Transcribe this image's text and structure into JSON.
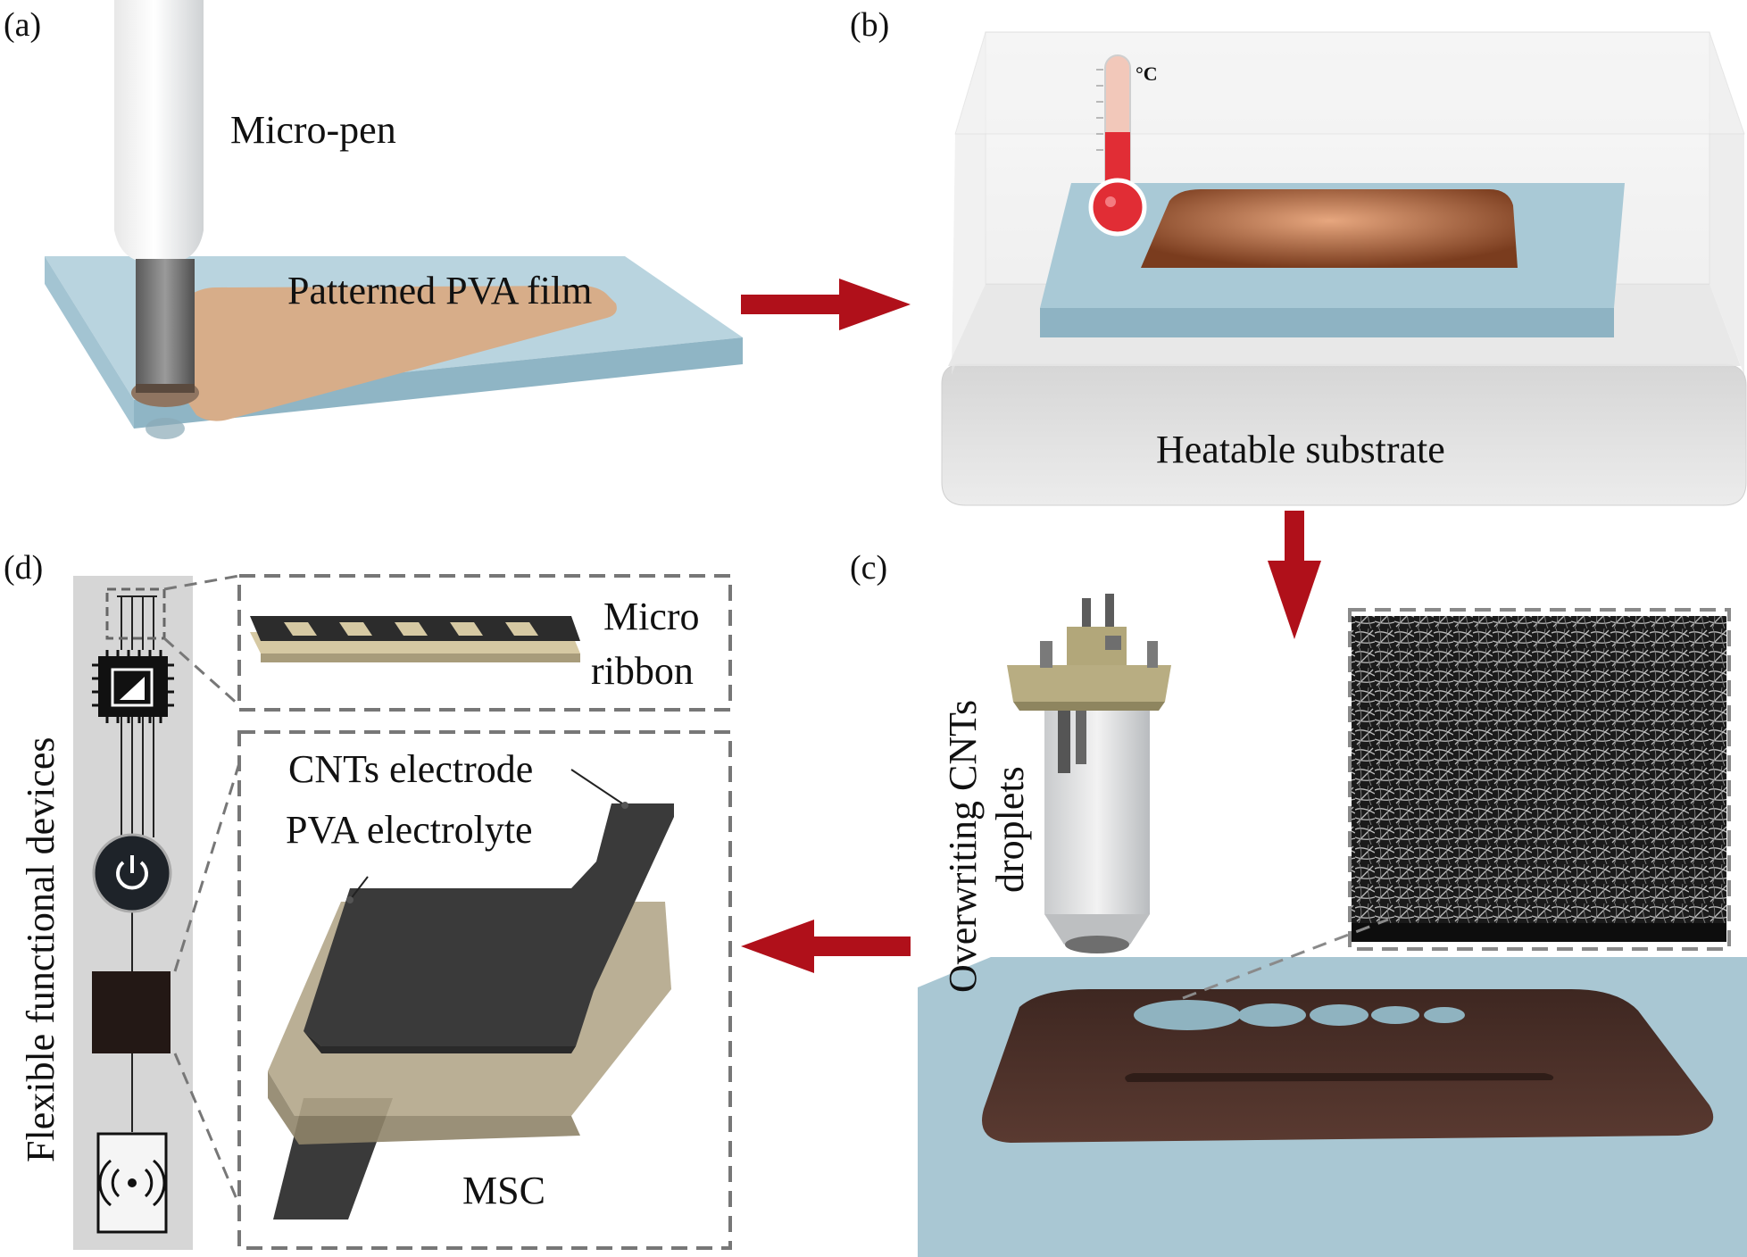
{
  "panels": {
    "a": {
      "tag": "(a)",
      "pen_label": "Micro-pen",
      "film_label": "Patterned PVA film"
    },
    "b": {
      "tag": "(b)",
      "temp_unit": "°C",
      "substrate_label": "Heatable substrate"
    },
    "c": {
      "tag": "(c)",
      "process_label_1": "Overwriting CNTs",
      "process_label_2": "droplets"
    },
    "d": {
      "tag": "(d)",
      "strip_label": "Flexible functional devices",
      "ribbon_label_1": "Micro",
      "ribbon_label_2": "ribbon",
      "electrode_label": "CNTs electrode",
      "electrolyte_label": "PVA electrolyte",
      "device_label": "MSC"
    }
  },
  "colors": {
    "arrow": "#b0101a",
    "substrate_blue": "#a9c9d6",
    "pva_film": "#d2a47c",
    "cnt_dark": "#3a3a3a",
    "electrolyte_tan": "#b3a68a",
    "brown_film": "#4a2e27"
  },
  "icons": [
    "chip-icon",
    "power-button-icon",
    "wireless-coil-icon",
    "thermometer-icon"
  ]
}
